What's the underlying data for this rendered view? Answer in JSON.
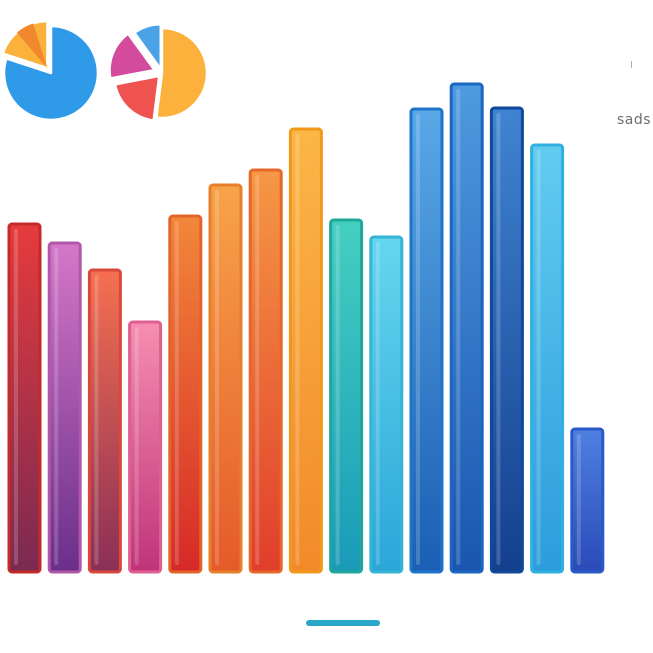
{
  "chart_data": [
    {
      "type": "bar",
      "values": [
        348,
        329,
        302,
        250,
        356,
        387,
        402,
        443,
        352,
        335,
        463,
        488,
        464,
        427,
        143
      ],
      "ylim": [
        0,
        500
      ],
      "grid": false,
      "legend": "none",
      "colors": [
        [
          "#e63b3b",
          "#7a2a52"
        ],
        [
          "#d477c8",
          "#6a2f8a"
        ],
        [
          "#f57050",
          "#8a2f56"
        ],
        [
          "#f58fb0",
          "#c0347a"
        ],
        [
          "#f2873a",
          "#d62a28"
        ],
        [
          "#f7a34a",
          "#e55a2a"
        ],
        [
          "#f59844",
          "#e03e2c"
        ],
        [
          "#fbb646",
          "#f28a2a"
        ],
        [
          "#45cfc0",
          "#1a9ab8"
        ],
        [
          "#65d6ee",
          "#2aa6d8"
        ],
        [
          "#5aa8e6",
          "#1a5fb4"
        ],
        [
          "#4f9ae0",
          "#1a56b0"
        ],
        [
          "#3f84d2",
          "#143f8e"
        ],
        [
          "#62ccf0",
          "#2c9cdc"
        ],
        [
          "#4f80e0",
          "#2a4ab8"
        ]
      ],
      "outline_colors": [
        "#c42a2a",
        "#b058a8",
        "#d9483a",
        "#df5f90",
        "#e3642a",
        "#e57f2a",
        "#e5682a",
        "#f0981a",
        "#1ea79a",
        "#35b4d6",
        "#1d74c8",
        "#1a66c0",
        "#12489a",
        "#2fb0e0",
        "#2a5ac8"
      ]
    },
    {
      "type": "pie",
      "values": [
        80,
        20
      ],
      "colors": [
        "#2f9be8",
        "#fbb13c"
      ],
      "accent_colors": [
        "#f2882e"
      ]
    },
    {
      "type": "pie",
      "values": [
        52,
        20,
        18,
        10
      ],
      "colors": [
        "#fbb13c",
        "#ef5350",
        "#d44a9c",
        "#4aa3e6"
      ]
    }
  ],
  "side_label": "sads",
  "accent_bar_color": "#2aa6c8"
}
